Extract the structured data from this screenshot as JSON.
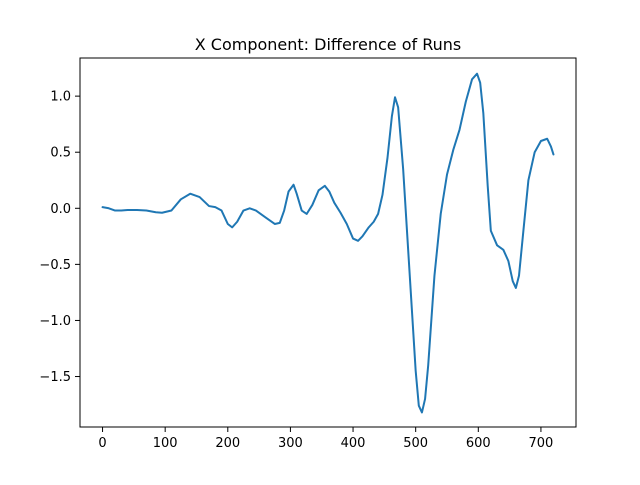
{
  "chart_data": {
    "type": "line",
    "title": "X Component: Difference of Runs",
    "xlabel": "",
    "ylabel": "",
    "xlim": [
      -36,
      756
    ],
    "ylim": [
      -1.95,
      1.34
    ],
    "xticks": [
      0,
      100,
      200,
      300,
      400,
      500,
      600,
      700
    ],
    "xtick_labels": [
      "0",
      "100",
      "200",
      "300",
      "400",
      "500",
      "600",
      "700"
    ],
    "yticks": [
      -1.5,
      -1.0,
      -0.5,
      0.0,
      0.5,
      1.0
    ],
    "ytick_labels": [
      "−1.5",
      "−1.0",
      "−0.5",
      "0.0",
      "0.5",
      "1.0"
    ],
    "grid": false,
    "series": [
      {
        "color": "#1f77b4",
        "x": [
          0,
          10,
          20,
          30,
          40,
          55,
          70,
          85,
          95,
          110,
          125,
          140,
          155,
          170,
          180,
          190,
          200,
          207,
          215,
          225,
          235,
          245,
          260,
          275,
          283,
          290,
          297,
          305,
          310,
          318,
          326,
          335,
          345,
          355,
          362,
          370,
          380,
          390,
          400,
          408,
          415,
          425,
          433,
          440,
          447,
          455,
          462,
          467,
          472,
          480,
          490,
          500,
          505,
          510,
          515,
          520,
          530,
          540,
          550,
          560,
          570,
          580,
          590,
          598,
          603,
          608,
          615,
          620,
          630,
          640,
          648,
          655,
          660,
          665,
          672,
          680,
          690,
          700,
          710,
          716,
          720
        ],
        "y": [
          0.01,
          0.0,
          -0.02,
          -0.02,
          -0.015,
          -0.015,
          -0.02,
          -0.035,
          -0.04,
          -0.02,
          0.08,
          0.13,
          0.1,
          0.02,
          0.01,
          -0.02,
          -0.14,
          -0.17,
          -0.12,
          -0.02,
          0.0,
          -0.02,
          -0.08,
          -0.14,
          -0.13,
          -0.02,
          0.15,
          0.21,
          0.13,
          -0.02,
          -0.05,
          0.03,
          0.16,
          0.2,
          0.15,
          0.05,
          -0.04,
          -0.14,
          -0.27,
          -0.29,
          -0.25,
          -0.17,
          -0.12,
          -0.05,
          0.12,
          0.45,
          0.82,
          0.99,
          0.9,
          0.35,
          -0.55,
          -1.45,
          -1.76,
          -1.82,
          -1.7,
          -1.4,
          -0.6,
          -0.05,
          0.3,
          0.52,
          0.7,
          0.95,
          1.15,
          1.2,
          1.12,
          0.85,
          0.2,
          -0.2,
          -0.33,
          -0.37,
          -0.47,
          -0.65,
          -0.71,
          -0.6,
          -0.2,
          0.25,
          0.5,
          0.6,
          0.62,
          0.55,
          0.48
        ]
      }
    ]
  }
}
